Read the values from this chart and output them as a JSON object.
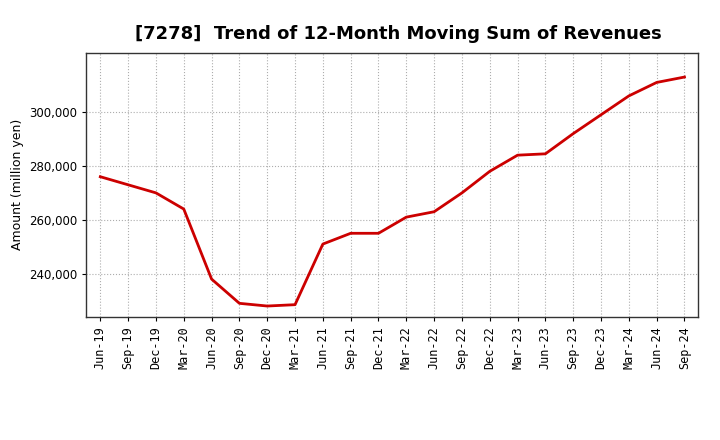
{
  "title": "[7278]  Trend of 12-Month Moving Sum of Revenues",
  "ylabel": "Amount (million yen)",
  "line_color": "#cc0000",
  "line_width": 2.0,
  "background_color": "#ffffff",
  "plot_bg_color": "#ffffff",
  "grid_color": "#999999",
  "tick_labels": [
    "Jun-19",
    "Sep-19",
    "Dec-19",
    "Mar-20",
    "Jun-20",
    "Sep-20",
    "Dec-20",
    "Mar-21",
    "Jun-21",
    "Sep-21",
    "Dec-21",
    "Mar-22",
    "Jun-22",
    "Sep-22",
    "Dec-22",
    "Mar-23",
    "Jun-23",
    "Sep-23",
    "Dec-23",
    "Mar-24",
    "Jun-24",
    "Sep-24"
  ],
  "values": [
    276000,
    273000,
    270000,
    264000,
    238000,
    229000,
    228000,
    228500,
    251000,
    255000,
    255000,
    261000,
    263000,
    270000,
    278000,
    284000,
    284500,
    292000,
    299000,
    306000,
    311000,
    313000
  ],
  "ylim": [
    224000,
    322000
  ],
  "yticks": [
    240000,
    260000,
    280000,
    300000
  ],
  "title_fontsize": 13,
  "ylabel_fontsize": 9,
  "tick_fontsize": 8.5
}
